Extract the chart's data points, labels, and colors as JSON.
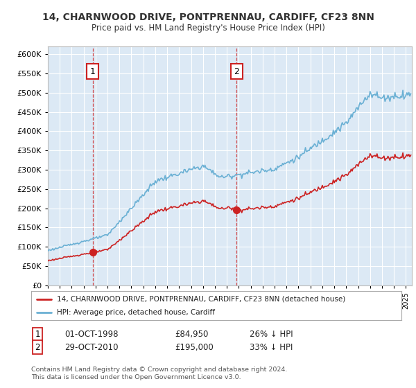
{
  "title": "14, CHARNWOOD DRIVE, PONTPRENNAU, CARDIFF, CF23 8NN",
  "subtitle": "Price paid vs. HM Land Registry's House Price Index (HPI)",
  "ylim": [
    0,
    620000
  ],
  "yticks": [
    0,
    50000,
    100000,
    150000,
    200000,
    250000,
    300000,
    350000,
    400000,
    450000,
    500000,
    550000,
    600000
  ],
  "bg_color": "#dce9f5",
  "grid_color": "#ffffff",
  "hpi_color": "#6ab0d4",
  "price_color": "#cc2222",
  "marker1_date": 1998.75,
  "marker1_price": 84950,
  "marker2_date": 2010.83,
  "marker2_price": 195000,
  "legend_line1": "14, CHARNWOOD DRIVE, PONTPRENNAU, CARDIFF, CF23 8NN (detached house)",
  "legend_line2": "HPI: Average price, detached house, Cardiff",
  "footnote": "Contains HM Land Registry data © Crown copyright and database right 2024.\nThis data is licensed under the Open Government Licence v3.0.",
  "xmin": 1995,
  "xmax": 2025.5
}
